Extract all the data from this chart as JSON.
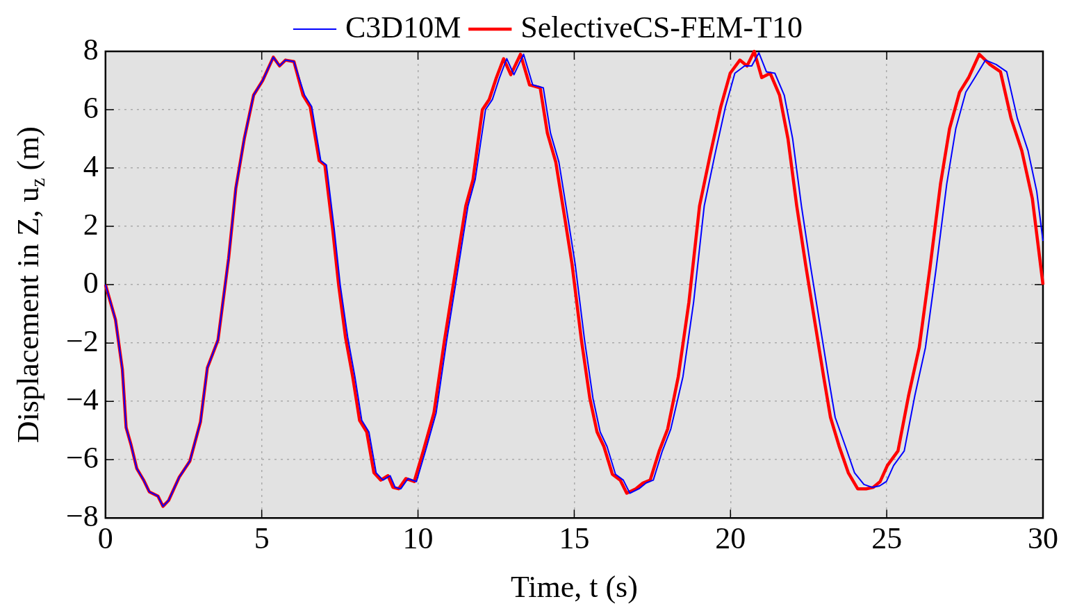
{
  "chart_data": {
    "type": "line",
    "xlabel": "Time, t (s)",
    "ylabel": "Displacement in Z, u$_{z}$ (m)",
    "xlim": [
      0,
      30
    ],
    "xticks": [
      0,
      5,
      10,
      15,
      20,
      25,
      30
    ],
    "ylim": [
      -8,
      8
    ],
    "yticks": [
      {
        "value": -8,
        "label": "−8"
      },
      {
        "value": -6,
        "label": "−6"
      },
      {
        "value": -4,
        "label": "−4"
      },
      {
        "value": -2,
        "label": "−2"
      },
      0,
      2,
      4,
      6,
      8
    ],
    "grid": true,
    "legend": "top",
    "marker": "none",
    "line_style": "solid",
    "series": [
      {
        "name": "SelectiveCS-FEM-T10",
        "color": "#ff0000",
        "x": [
          0,
          0.32,
          0.54,
          0.66,
          0.82,
          1.0,
          1.22,
          1.4,
          1.68,
          1.84,
          2.02,
          2.36,
          2.7,
          3.04,
          3.26,
          3.6,
          3.94,
          4.17,
          4.44,
          4.74,
          5.03,
          5.37,
          5.57,
          5.76,
          6.03,
          6.32,
          6.55,
          6.84,
          7.02,
          7.27,
          7.46,
          7.68,
          7.91,
          8.13,
          8.36,
          8.59,
          8.81,
          9.04,
          9.2,
          9.38,
          9.61,
          9.88,
          10.17,
          10.51,
          10.85,
          11.19,
          11.53,
          11.76,
          12.06,
          12.28,
          12.51,
          12.74,
          12.97,
          13.28,
          13.57,
          13.91,
          14.14,
          14.41,
          14.71,
          14.93,
          15.23,
          15.5,
          15.73,
          15.95,
          16.22,
          16.47,
          16.68,
          16.97,
          17.2,
          17.43,
          17.72,
          17.99,
          18.33,
          18.67,
          19.01,
          19.35,
          19.69,
          19.99,
          20.3,
          20.53,
          20.76,
          21.0,
          21.27,
          21.57,
          21.84,
          22.12,
          22.41,
          22.71,
          22.98,
          23.2,
          23.48,
          23.77,
          24.07,
          24.34,
          24.57,
          24.79,
          25.02,
          25.36,
          25.7,
          26.04,
          26.38,
          26.72,
          27.01,
          27.33,
          27.62,
          27.96,
          28.3,
          28.64,
          28.98,
          29.32,
          29.66,
          30
        ],
        "values": [
          0,
          -1.2,
          -2.9,
          -4.9,
          -5.5,
          -6.3,
          -6.7,
          -7.1,
          -7.25,
          -7.6,
          -7.4,
          -6.6,
          -6.05,
          -4.7,
          -2.85,
          -1.9,
          0.9,
          3.3,
          5.0,
          6.5,
          7.0,
          7.8,
          7.5,
          7.7,
          7.65,
          6.5,
          6.1,
          4.25,
          4.1,
          1.9,
          0,
          -1.8,
          -3.15,
          -4.65,
          -5.05,
          -6.45,
          -6.7,
          -6.55,
          -6.95,
          -7.0,
          -6.65,
          -6.75,
          -5.7,
          -4.4,
          -1.9,
          0.4,
          2.7,
          3.6,
          6.0,
          6.35,
          7.1,
          7.75,
          7.2,
          7.9,
          6.85,
          6.75,
          5.2,
          4.2,
          2.2,
          0.7,
          -1.9,
          -3.9,
          -5.05,
          -5.55,
          -6.5,
          -6.7,
          -7.15,
          -7.0,
          -6.8,
          -6.7,
          -5.7,
          -4.95,
          -3.15,
          -0.6,
          2.7,
          4.45,
          6.1,
          7.25,
          7.7,
          7.5,
          8.0,
          7.1,
          7.25,
          6.5,
          5.0,
          2.7,
          0.65,
          -1.35,
          -3.15,
          -4.55,
          -5.55,
          -6.45,
          -7.0,
          -7.0,
          -6.95,
          -6.75,
          -6.2,
          -5.7,
          -3.8,
          -2.15,
          0.55,
          3.45,
          5.35,
          6.6,
          7.1,
          7.9,
          7.55,
          7.3,
          5.7,
          4.6,
          2.95,
          0
        ]
      },
      {
        "name": "C3D10M",
        "color": "#0000ff",
        "x": [
          0,
          0.32,
          0.54,
          0.66,
          0.82,
          1.0,
          1.22,
          1.4,
          1.68,
          1.84,
          2.02,
          2.36,
          2.7,
          3.04,
          3.26,
          3.6,
          3.94,
          4.17,
          4.44,
          4.74,
          5.03,
          5.37,
          5.57,
          5.76,
          6.03,
          6.37,
          6.6,
          6.89,
          7.07,
          7.32,
          7.51,
          7.75,
          7.98,
          8.2,
          8.43,
          8.66,
          8.88,
          9.11,
          9.27,
          9.45,
          9.68,
          9.95,
          10.24,
          10.58,
          10.92,
          11.26,
          11.6,
          11.83,
          12.16,
          12.38,
          12.61,
          12.84,
          13.07,
          13.38,
          13.67,
          14.01,
          14.24,
          14.51,
          14.81,
          15.03,
          15.33,
          15.6,
          15.83,
          16.05,
          16.32,
          16.57,
          16.78,
          17.07,
          17.3,
          17.53,
          17.82,
          18.09,
          18.48,
          18.82,
          19.16,
          19.5,
          19.84,
          20.14,
          20.45,
          20.68,
          20.91,
          21.15,
          21.42,
          21.72,
          21.99,
          22.27,
          22.56,
          22.86,
          23.13,
          23.35,
          23.68,
          23.97,
          24.27,
          24.54,
          24.77,
          24.99,
          25.22,
          25.56,
          25.9,
          26.24,
          26.58,
          26.92,
          27.21,
          27.53,
          27.82,
          28.16,
          28.5,
          28.84,
          29.18,
          29.52,
          29.8,
          30
        ],
        "values": [
          0,
          -1.2,
          -2.9,
          -4.9,
          -5.5,
          -6.3,
          -6.7,
          -7.1,
          -7.25,
          -7.6,
          -7.4,
          -6.6,
          -6.05,
          -4.7,
          -2.85,
          -1.9,
          0.9,
          3.3,
          5.0,
          6.5,
          7.0,
          7.8,
          7.5,
          7.7,
          7.65,
          6.5,
          6.1,
          4.25,
          4.1,
          1.9,
          0,
          -1.8,
          -3.15,
          -4.65,
          -5.05,
          -6.45,
          -6.7,
          -6.55,
          -6.95,
          -7.0,
          -6.65,
          -6.75,
          -5.7,
          -4.4,
          -1.9,
          0.4,
          2.7,
          3.6,
          6.0,
          6.35,
          7.1,
          7.75,
          7.2,
          7.9,
          6.85,
          6.75,
          5.2,
          4.2,
          2.2,
          0.7,
          -1.9,
          -3.9,
          -5.05,
          -5.55,
          -6.5,
          -6.7,
          -7.15,
          -7.0,
          -6.8,
          -6.7,
          -5.7,
          -4.95,
          -3.15,
          -0.6,
          2.7,
          4.45,
          6.1,
          7.25,
          7.5,
          7.5,
          7.95,
          7.3,
          7.25,
          6.5,
          5.0,
          2.7,
          0.65,
          -1.35,
          -3.15,
          -4.55,
          -5.55,
          -6.45,
          -6.85,
          -6.95,
          -6.9,
          -6.75,
          -6.2,
          -5.7,
          -3.8,
          -2.15,
          0.55,
          3.45,
          5.35,
          6.6,
          7.1,
          7.7,
          7.55,
          7.3,
          5.7,
          4.6,
          3.2,
          1.5
        ]
      }
    ]
  }
}
